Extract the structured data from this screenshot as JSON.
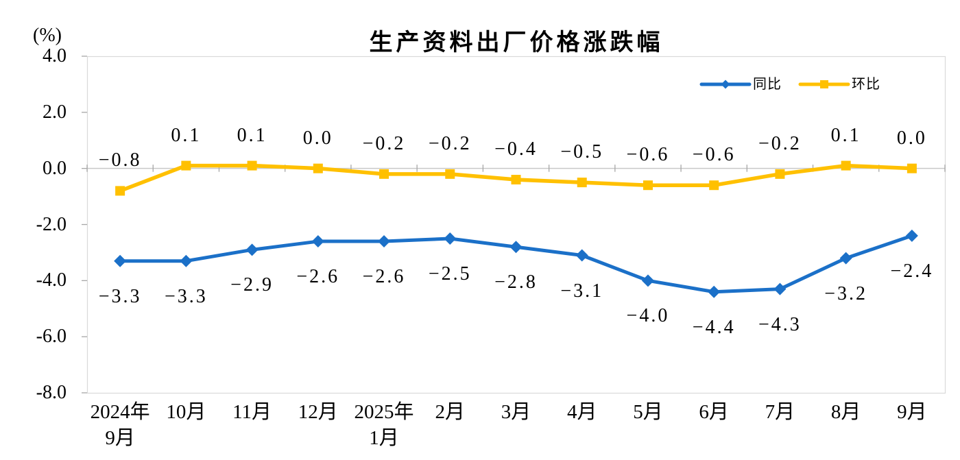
{
  "chart_data": {
    "type": "line",
    "title": "生产资料出厂价格涨跌幅",
    "y_unit": "(%)",
    "categories": [
      [
        "2024年",
        "9月"
      ],
      [
        "10月"
      ],
      [
        "11月"
      ],
      [
        "12月"
      ],
      [
        "2025年",
        "1月"
      ],
      [
        "2月"
      ],
      [
        "3月"
      ],
      [
        "4月"
      ],
      [
        "5月"
      ],
      [
        "6月"
      ],
      [
        "7月"
      ],
      [
        "8月"
      ],
      [
        "9月"
      ]
    ],
    "series": [
      {
        "name": "同比",
        "color": "#1B70C8",
        "marker": "diamond",
        "label_position": "below",
        "values": [
          -3.3,
          -3.3,
          -2.9,
          -2.6,
          -2.6,
          -2.5,
          -2.8,
          -3.1,
          -4.0,
          -4.4,
          -4.3,
          -3.2,
          -2.4
        ]
      },
      {
        "name": "环比",
        "color": "#FFC000",
        "marker": "square",
        "label_position": "above",
        "values": [
          -0.8,
          0.1,
          0.1,
          0.0,
          -0.2,
          -0.2,
          -0.4,
          -0.5,
          -0.6,
          -0.6,
          -0.2,
          0.1,
          0.0
        ]
      }
    ],
    "y_axis": {
      "min": -8.0,
      "max": 4.0,
      "step": 2.0,
      "tick_labels": [
        "4.0",
        "2.0",
        "0.0",
        "-2.0",
        "-4.0",
        "-6.0",
        "-8.0"
      ]
    },
    "legend": {
      "position": "top-right",
      "entries": [
        "同比",
        "环比"
      ]
    },
    "grid": {
      "zero_line": true,
      "horizontal_gridlines": false
    },
    "style_colors": {
      "plot_border": "#D9D9D9",
      "zero_line": "#C9C9C9",
      "tick": "#A6A6A6",
      "text": "#000000"
    }
  }
}
